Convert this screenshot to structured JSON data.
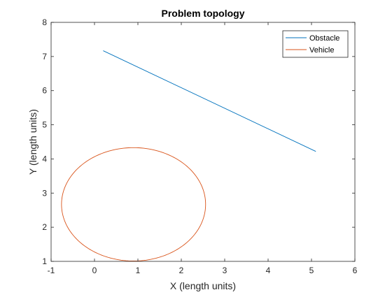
{
  "chart_data": {
    "type": "line",
    "title": "Problem topology",
    "xlabel": "X (length units)",
    "ylabel": "Y (length units)",
    "xlim": [
      -1,
      6
    ],
    "ylim": [
      1,
      8
    ],
    "xticks": [
      "-1",
      "0",
      "1",
      "2",
      "3",
      "4",
      "5",
      "6"
    ],
    "yticks": [
      "1",
      "2",
      "3",
      "4",
      "5",
      "6",
      "7",
      "8"
    ],
    "grid": false,
    "legend_position": "top-right",
    "series": [
      {
        "name": "Obstacle",
        "color": "#0072BD",
        "x": [
          0.2,
          5.1
        ],
        "y": [
          7.17,
          4.22
        ]
      },
      {
        "name": "Vehicle",
        "color": "#D95319",
        "shape": "circle",
        "center": [
          0.9,
          2.67
        ],
        "radius": 1.66,
        "samples": 180
      }
    ]
  }
}
